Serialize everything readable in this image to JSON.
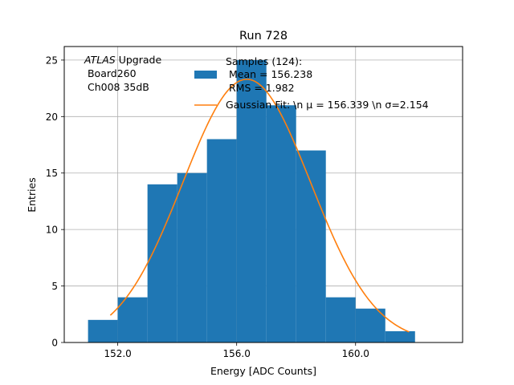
{
  "chart_data": {
    "type": "bar",
    "title": "Run 728",
    "xlabel": "Energy [ADC Counts]",
    "ylabel": "Entries",
    "xlim": [
      150.2,
      163.6
    ],
    "ylim": [
      0,
      26.2
    ],
    "grid": true,
    "x_ticks": [
      152.0,
      156.0,
      160.0
    ],
    "x_tick_labels": [
      "152.0",
      "156.0",
      "160.0"
    ],
    "y_ticks": [
      0,
      5,
      10,
      15,
      20,
      25
    ],
    "y_tick_labels": [
      "0",
      "5",
      "10",
      "15",
      "20",
      "25"
    ],
    "bin_edges": [
      151.0,
      152.0,
      153.0,
      154.0,
      155.0,
      156.0,
      157.0,
      158.0,
      159.0,
      160.0,
      161.0,
      162.0
    ],
    "counts": [
      2,
      4,
      14,
      15,
      18,
      25,
      21,
      17,
      4,
      3,
      1
    ],
    "bar_color": "#1f77b4",
    "fit": {
      "type": "gaussian",
      "mu": 156.339,
      "sigma": 2.154,
      "x_range": [
        151.75,
        161.8
      ],
      "peak": 23.3,
      "color": "#ff7f0e"
    },
    "annotation": {
      "italic": "ATLAS",
      "rest": " Upgrade",
      "line2": " Board260",
      "line3": " Ch008 35dB"
    },
    "legend": {
      "position": "top-right",
      "samples_line1": "Samples (124):",
      "samples_line2": " Mean = 156.238",
      "samples_line3": " RMS = 1.982",
      "fit_label": "Gaussian Fit: \\n μ = 156.339 \\n σ=2.154"
    }
  }
}
